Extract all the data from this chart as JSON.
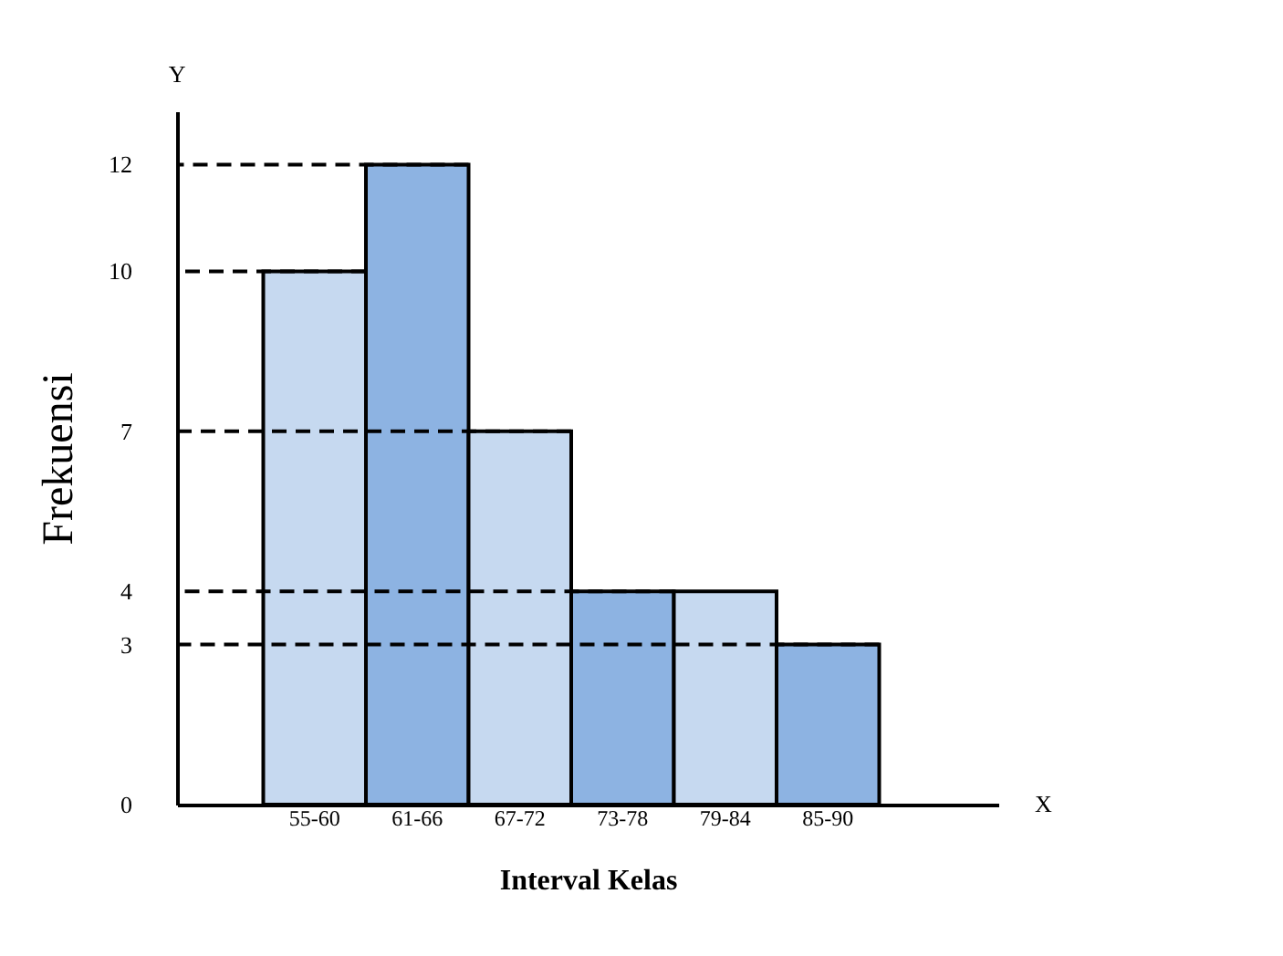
{
  "chart_data": {
    "type": "bar",
    "xlabel": "Interval Kelas",
    "ylabel": "Frekuensi",
    "categories": [
      "55-60",
      "61-66",
      "67-72",
      "73-78",
      "79-84",
      "85-90"
    ],
    "values": [
      10,
      12,
      7,
      4,
      4,
      3
    ],
    "colors": [
      "#c6d9f0",
      "#8db3e2",
      "#c6d9f0",
      "#8db3e2",
      "#c6d9f0",
      "#8db3e2"
    ],
    "ylim": [
      0,
      13
    ],
    "yticks": [
      0,
      3,
      4,
      7,
      10,
      12
    ],
    "grid": false,
    "legend": false,
    "annotations": [
      "X",
      "Y"
    ],
    "ref_lines": [
      {
        "axis": "y",
        "value": 12,
        "line_style": "dashed",
        "color": "#000000"
      },
      {
        "axis": "y",
        "value": 10,
        "line_style": "dashed",
        "color": "#000000"
      },
      {
        "axis": "y",
        "value": 7,
        "line_style": "dashed",
        "color": "#000000"
      },
      {
        "axis": "y",
        "value": 4,
        "line_style": "dashed",
        "color": "#000000"
      },
      {
        "axis": "y",
        "value": 3,
        "line_style": "dashed",
        "color": "#000000"
      }
    ]
  }
}
